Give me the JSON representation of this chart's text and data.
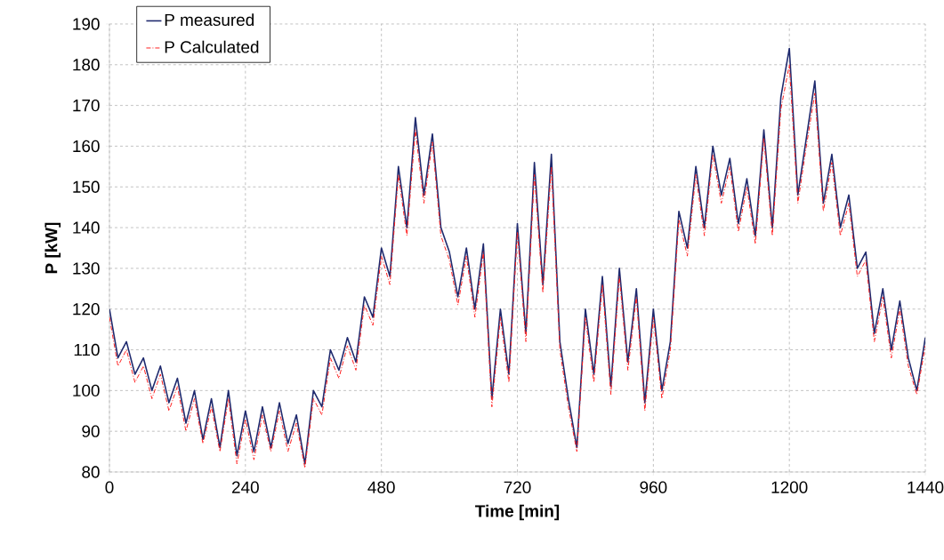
{
  "chart_data": {
    "type": "line",
    "xlabel": "Time [min]",
    "ylabel": "P [kW]",
    "x": [
      0,
      15,
      30,
      45,
      60,
      75,
      90,
      105,
      120,
      135,
      150,
      165,
      180,
      195,
      210,
      225,
      240,
      255,
      270,
      285,
      300,
      315,
      330,
      345,
      360,
      375,
      390,
      405,
      420,
      435,
      450,
      465,
      480,
      495,
      510,
      525,
      540,
      555,
      570,
      585,
      600,
      615,
      630,
      645,
      660,
      675,
      690,
      705,
      720,
      735,
      750,
      765,
      780,
      795,
      810,
      825,
      840,
      855,
      870,
      885,
      900,
      915,
      930,
      945,
      960,
      975,
      990,
      1005,
      1020,
      1035,
      1050,
      1065,
      1080,
      1095,
      1110,
      1125,
      1140,
      1155,
      1170,
      1185,
      1200,
      1215,
      1230,
      1245,
      1260,
      1275,
      1290,
      1305,
      1320,
      1335,
      1350,
      1365,
      1380,
      1395,
      1410,
      1425,
      1440
    ],
    "series": [
      {
        "name": "P measured",
        "color": "#1f2a6e",
        "line_style": "solid",
        "values": [
          120,
          108,
          112,
          104,
          108,
          100,
          106,
          97,
          103,
          92,
          100,
          88,
          98,
          86,
          100,
          84,
          95,
          85,
          96,
          86,
          97,
          87,
          94,
          82,
          100,
          96,
          110,
          105,
          113,
          107,
          123,
          118,
          135,
          128,
          155,
          140,
          167,
          148,
          163,
          140,
          134,
          123,
          135,
          120,
          136,
          98,
          120,
          104,
          141,
          114,
          156,
          126,
          158,
          112,
          98,
          86,
          120,
          104,
          128,
          101,
          130,
          107,
          125,
          97,
          120,
          100,
          112,
          144,
          135,
          155,
          140,
          160,
          148,
          157,
          141,
          152,
          138,
          164,
          140,
          172,
          184,
          148,
          162,
          176,
          146,
          158,
          140,
          148,
          130,
          134,
          114,
          125,
          110,
          122,
          108,
          100,
          113
        ]
      },
      {
        "name": "P Calculated",
        "color": "#ff2020",
        "line_style": "dashed",
        "values": [
          118,
          106,
          110,
          102,
          106,
          98,
          104,
          95,
          101,
          90,
          98,
          87,
          96,
          85,
          98,
          82,
          93,
          83,
          94,
          85,
          95,
          85,
          92,
          81,
          98,
          94,
          108,
          103,
          111,
          105,
          121,
          116,
          133,
          126,
          153,
          138,
          164,
          146,
          161,
          138,
          132,
          121,
          133,
          118,
          134,
          96,
          118,
          102,
          139,
          112,
          153,
          124,
          155,
          110,
          96,
          85,
          118,
          102,
          126,
          99,
          128,
          105,
          123,
          95,
          118,
          98,
          110,
          142,
          133,
          153,
          138,
          158,
          146,
          155,
          139,
          150,
          136,
          162,
          138,
          169,
          180,
          146,
          160,
          173,
          144,
          156,
          138,
          146,
          128,
          132,
          112,
          123,
          108,
          120,
          106,
          99,
          111
        ]
      }
    ],
    "xlim": [
      0,
      1440
    ],
    "xticks": [
      0,
      240,
      480,
      720,
      960,
      1200,
      1440
    ],
    "ylim": [
      80,
      190
    ],
    "yticks": [
      80,
      90,
      100,
      110,
      120,
      130,
      140,
      150,
      160,
      170,
      180,
      190
    ],
    "grid": true,
    "legend": "top left"
  }
}
